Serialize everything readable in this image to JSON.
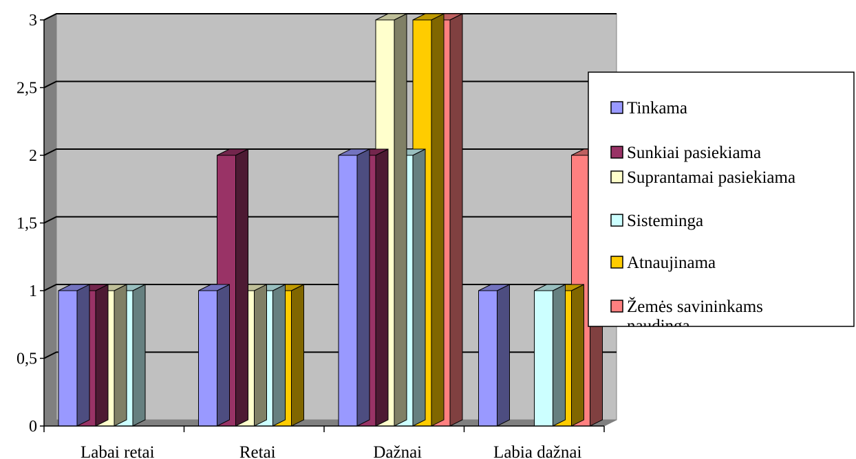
{
  "chart_data": {
    "type": "bar",
    "title": "",
    "xlabel": "",
    "ylabel": "",
    "categories": [
      "Labai retai",
      "Retai",
      "Dažnai",
      "Labia dažnai"
    ],
    "y_ticks": [
      "0",
      "0,5",
      "1",
      "1,5",
      "2",
      "2,5",
      "3"
    ],
    "ylim": [
      0,
      3
    ],
    "grid": true,
    "legend_position": "right",
    "series": [
      {
        "name": "Tinkama",
        "color": "#9999ff",
        "values": [
          1,
          1,
          2,
          1
        ]
      },
      {
        "name": "Sunkiai pasiekiama",
        "color": "#993366",
        "values": [
          1,
          2,
          2,
          0
        ]
      },
      {
        "name": "Suprantamai pasiekiama",
        "color": "#ffffcc",
        "values": [
          1,
          1,
          3,
          0
        ]
      },
      {
        "name": "Sisteminga",
        "color": "#ccffff",
        "values": [
          1,
          1,
          2,
          1
        ]
      },
      {
        "name": "Atnaujinama",
        "color": "#ffcc00",
        "values": [
          0,
          1,
          3,
          1
        ]
      },
      {
        "name": "Žemės savininkams naudinga",
        "color": "#ff8080",
        "values": [
          0,
          0,
          3,
          2
        ]
      }
    ]
  }
}
